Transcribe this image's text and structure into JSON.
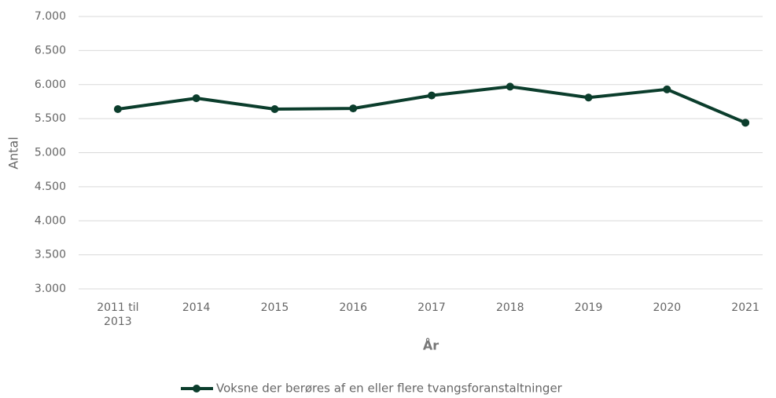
{
  "chart_data": {
    "type": "line",
    "categories": [
      "2011 til 2013",
      "2014",
      "2015",
      "2016",
      "2017",
      "2018",
      "2019",
      "2020",
      "2021"
    ],
    "series": [
      {
        "name": "Voksne der berøres af en eller flere tvangsforanstaltninger",
        "color": "#0b3d2c",
        "values": [
          5640,
          5800,
          5640,
          5650,
          5840,
          5970,
          5810,
          5930,
          5440
        ]
      }
    ],
    "xlabel": "År",
    "ylabel": "Antal",
    "ylim": [
      3000,
      7000
    ],
    "yticks": [
      {
        "value": 3000,
        "label": "3.000"
      },
      {
        "value": 3500,
        "label": "3.500"
      },
      {
        "value": 4000,
        "label": "4.000"
      },
      {
        "value": 4500,
        "label": "4.500"
      },
      {
        "value": 5000,
        "label": "5.000"
      },
      {
        "value": 5500,
        "label": "5.500"
      },
      {
        "value": 6000,
        "label": "6.000"
      },
      {
        "value": 6500,
        "label": "6.500"
      },
      {
        "value": 7000,
        "label": "7.000"
      }
    ],
    "grid": true,
    "legend": "bottom"
  }
}
